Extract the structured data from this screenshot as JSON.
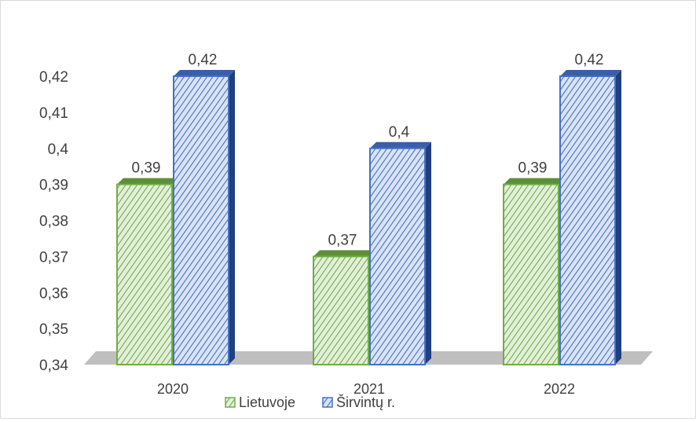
{
  "chart_data": {
    "type": "bar",
    "categories": [
      "2020",
      "2021",
      "2022"
    ],
    "series": [
      {
        "name": "Lietuvoje",
        "values": [
          0.39,
          0.37,
          0.39
        ],
        "color": "#70ad47",
        "labels": [
          "0,39",
          "0,37",
          "0,39"
        ]
      },
      {
        "name": "Širvintų r.",
        "values": [
          0.42,
          0.4,
          0.42
        ],
        "color": "#4472c4",
        "labels": [
          "0,42",
          "0,4",
          "0,42"
        ]
      }
    ],
    "y_ticks": [
      "0,34",
      "0,35",
      "0,36",
      "0,37",
      "0,38",
      "0,39",
      "0,4",
      "0,41",
      "0,42"
    ],
    "ylim": [
      0.34,
      0.42
    ],
    "legend_position": "bottom",
    "grid": false,
    "style": "3d-clustered-column, hatched fill"
  }
}
